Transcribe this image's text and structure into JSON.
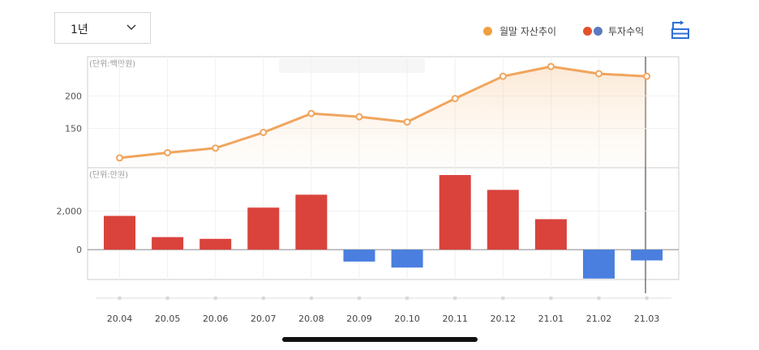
{
  "controls": {
    "period": "1년",
    "legend_asset": "월말 자산추이",
    "legend_profit": "투자수익",
    "toggle_icon": "view-toggle-icon"
  },
  "colors": {
    "asset_line": "#f0a55e",
    "asset_point_fill": "#ffffff",
    "profit_positive": "#d9433c",
    "profit_negative": "#4a7fe0",
    "legend_asset_dot": "#f0a040",
    "legend_profit_pos": "#e4522c",
    "legend_profit_neg": "#5b7ac0",
    "icon": "#2d6fd6"
  },
  "chart_data": [
    {
      "type": "line",
      "unit_label": "(단위:백만원)",
      "categories": [
        "20.04",
        "20.05",
        "20.06",
        "20.07",
        "20.08",
        "20.09",
        "20.10",
        "20.11",
        "20.12",
        "21.01",
        "21.02",
        "21.03"
      ],
      "values": [
        105,
        113,
        120,
        144,
        173,
        168,
        160,
        196,
        230,
        245,
        234,
        230
      ],
      "yticks": [
        150,
        200
      ],
      "ytick_labels": [
        "150",
        "200"
      ],
      "ylim": [
        90,
        260
      ],
      "grid": true,
      "fill": "gradient"
    },
    {
      "type": "bar",
      "unit_label": "(단위:만원)",
      "categories": [
        "20.04",
        "20.05",
        "20.06",
        "20.07",
        "20.08",
        "20.09",
        "20.10",
        "20.11",
        "20.12",
        "21.01",
        "21.02",
        "21.03"
      ],
      "values": [
        1750,
        650,
        560,
        2180,
        2850,
        -620,
        -930,
        3870,
        3100,
        1580,
        -1500,
        -560
      ],
      "yticks": [
        0,
        2000
      ],
      "ytick_labels": [
        "0",
        "2,000"
      ],
      "ylim": [
        -1550,
        4250
      ],
      "grid": true
    }
  ]
}
